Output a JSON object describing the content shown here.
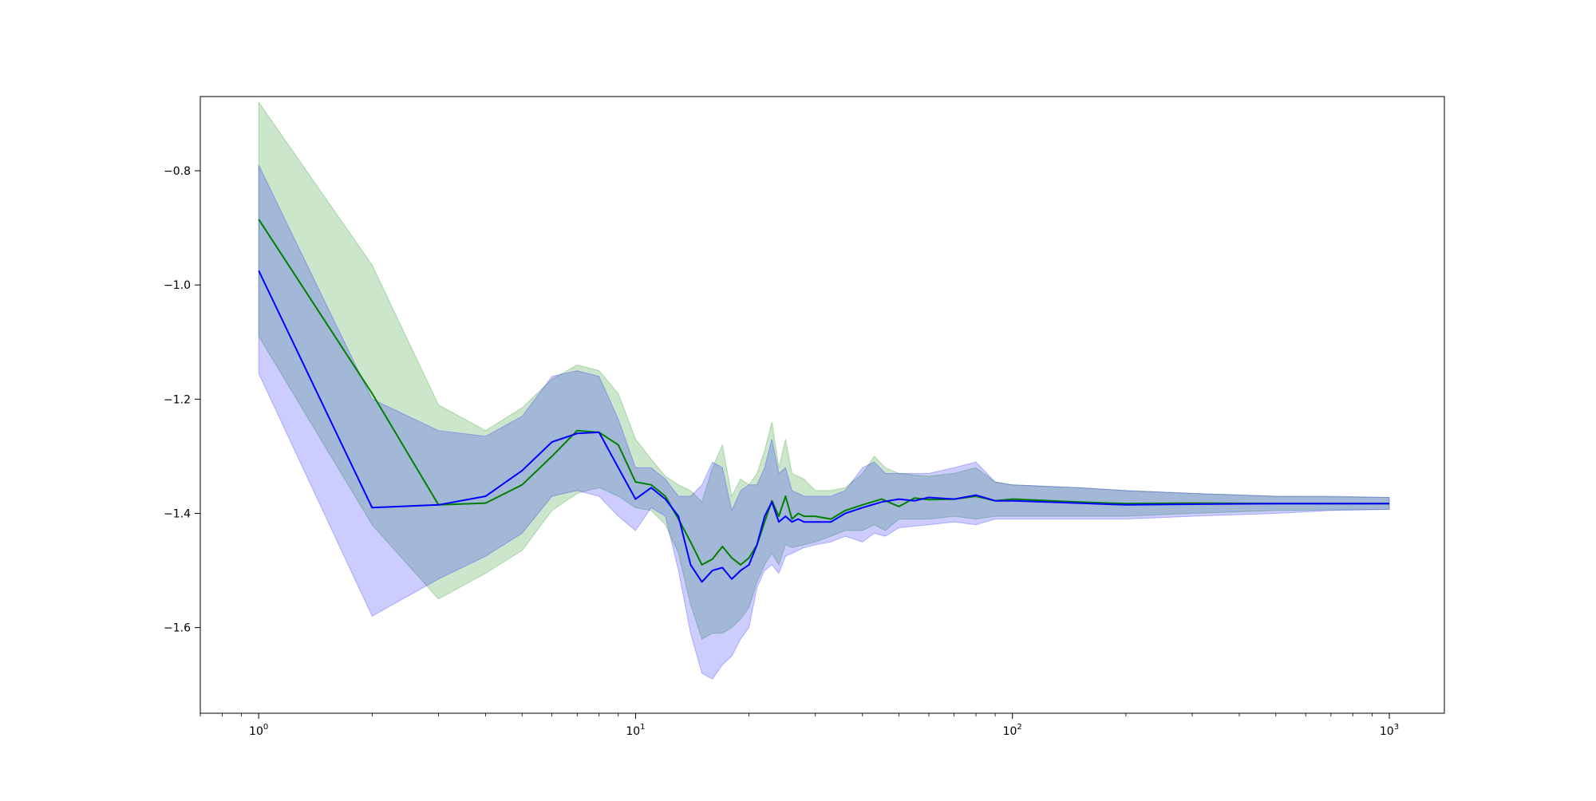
{
  "chart_data": {
    "type": "line",
    "title": "",
    "xlabel": "",
    "ylabel": "",
    "xscale": "log",
    "xlim": [
      0.7,
      1400
    ],
    "ylim": [
      -1.75,
      -0.67
    ],
    "x_ticks": [
      {
        "value": 1,
        "base": "10",
        "exp": "0"
      },
      {
        "value": 10,
        "base": "10",
        "exp": "1"
      },
      {
        "value": 100,
        "base": "10",
        "exp": "2"
      },
      {
        "value": 1000,
        "base": "10",
        "exp": "3"
      }
    ],
    "y_ticks": [
      {
        "value": -0.8,
        "label": "−0.8"
      },
      {
        "value": -1.0,
        "label": "−1.0"
      },
      {
        "value": -1.2,
        "label": "−1.2"
      },
      {
        "value": -1.4,
        "label": "−1.4"
      },
      {
        "value": -1.6,
        "label": "−1.6"
      }
    ],
    "grid": false,
    "legend": "none",
    "series": [
      {
        "color": "#008000",
        "band_color": "#008000",
        "band_opacity": 0.2,
        "mean": [
          [
            1,
            -0.885
          ],
          [
            2,
            -1.19
          ],
          [
            3,
            -1.385
          ],
          [
            4,
            -1.382
          ],
          [
            5,
            -1.35
          ],
          [
            6,
            -1.3
          ],
          [
            7,
            -1.255
          ],
          [
            8,
            -1.258
          ],
          [
            9,
            -1.28
          ],
          [
            10,
            -1.345
          ],
          [
            11,
            -1.35
          ],
          [
            12,
            -1.37
          ],
          [
            13,
            -1.41
          ],
          [
            14,
            -1.45
          ],
          [
            15,
            -1.49
          ],
          [
            16,
            -1.48
          ],
          [
            17,
            -1.458
          ],
          [
            18,
            -1.478
          ],
          [
            19,
            -1.49
          ],
          [
            20,
            -1.478
          ],
          [
            21,
            -1.455
          ],
          [
            22,
            -1.415
          ],
          [
            23,
            -1.378
          ],
          [
            24,
            -1.405
          ],
          [
            25,
            -1.37
          ],
          [
            26,
            -1.41
          ],
          [
            27,
            -1.4
          ],
          [
            28,
            -1.405
          ],
          [
            30,
            -1.405
          ],
          [
            33,
            -1.41
          ],
          [
            36,
            -1.395
          ],
          [
            40,
            -1.385
          ],
          [
            45,
            -1.375
          ],
          [
            50,
            -1.388
          ],
          [
            55,
            -1.373
          ],
          [
            60,
            -1.376
          ],
          [
            70,
            -1.375
          ],
          [
            80,
            -1.37
          ],
          [
            90,
            -1.378
          ],
          [
            100,
            -1.375
          ],
          [
            150,
            -1.38
          ],
          [
            200,
            -1.383
          ],
          [
            300,
            -1.382
          ],
          [
            500,
            -1.383
          ],
          [
            1000,
            -1.383
          ]
        ],
        "band": [
          [
            1,
            -0.68,
            -1.09
          ],
          [
            2,
            -0.965,
            -1.42
          ],
          [
            3,
            -1.21,
            -1.55
          ],
          [
            4,
            -1.255,
            -1.505
          ],
          [
            5,
            -1.215,
            -1.465
          ],
          [
            6,
            -1.165,
            -1.395
          ],
          [
            7,
            -1.14,
            -1.365
          ],
          [
            8,
            -1.15,
            -1.355
          ],
          [
            9,
            -1.19,
            -1.37
          ],
          [
            10,
            -1.27,
            -1.39
          ],
          [
            11,
            -1.305,
            -1.395
          ],
          [
            12,
            -1.335,
            -1.42
          ],
          [
            13,
            -1.35,
            -1.47
          ],
          [
            14,
            -1.36,
            -1.56
          ],
          [
            15,
            -1.38,
            -1.62
          ],
          [
            16,
            -1.32,
            -1.61
          ],
          [
            17,
            -1.28,
            -1.61
          ],
          [
            18,
            -1.37,
            -1.6
          ],
          [
            19,
            -1.34,
            -1.585
          ],
          [
            20,
            -1.35,
            -1.565
          ],
          [
            21,
            -1.33,
            -1.52
          ],
          [
            22,
            -1.29,
            -1.49
          ],
          [
            23,
            -1.24,
            -1.47
          ],
          [
            24,
            -1.32,
            -1.49
          ],
          [
            25,
            -1.27,
            -1.455
          ],
          [
            26,
            -1.33,
            -1.46
          ],
          [
            28,
            -1.34,
            -1.455
          ],
          [
            30,
            -1.36,
            -1.45
          ],
          [
            33,
            -1.36,
            -1.44
          ],
          [
            36,
            -1.355,
            -1.43
          ],
          [
            40,
            -1.33,
            -1.43
          ],
          [
            43,
            -1.3,
            -1.42
          ],
          [
            46,
            -1.32,
            -1.43
          ],
          [
            50,
            -1.33,
            -1.41
          ],
          [
            60,
            -1.335,
            -1.41
          ],
          [
            70,
            -1.33,
            -1.405
          ],
          [
            80,
            -1.32,
            -1.41
          ],
          [
            90,
            -1.345,
            -1.405
          ],
          [
            100,
            -1.35,
            -1.405
          ],
          [
            150,
            -1.355,
            -1.405
          ],
          [
            200,
            -1.36,
            -1.405
          ],
          [
            300,
            -1.365,
            -1.4
          ],
          [
            500,
            -1.37,
            -1.395
          ],
          [
            1000,
            -1.372,
            -1.393
          ]
        ]
      },
      {
        "color": "#0000ff",
        "band_color": "#0000ff",
        "band_opacity": 0.2,
        "mean": [
          [
            1,
            -0.975
          ],
          [
            2,
            -1.39
          ],
          [
            3,
            -1.385
          ],
          [
            4,
            -1.37
          ],
          [
            5,
            -1.325
          ],
          [
            6,
            -1.275
          ],
          [
            7,
            -1.26
          ],
          [
            8,
            -1.258
          ],
          [
            9,
            -1.32
          ],
          [
            10,
            -1.375
          ],
          [
            11,
            -1.355
          ],
          [
            12,
            -1.375
          ],
          [
            13,
            -1.405
          ],
          [
            14,
            -1.49
          ],
          [
            15,
            -1.52
          ],
          [
            16,
            -1.5
          ],
          [
            17,
            -1.495
          ],
          [
            18,
            -1.515
          ],
          [
            19,
            -1.5
          ],
          [
            20,
            -1.49
          ],
          [
            21,
            -1.455
          ],
          [
            22,
            -1.405
          ],
          [
            23,
            -1.38
          ],
          [
            24,
            -1.415
          ],
          [
            25,
            -1.405
          ],
          [
            26,
            -1.415
          ],
          [
            27,
            -1.41
          ],
          [
            28,
            -1.415
          ],
          [
            30,
            -1.415
          ],
          [
            33,
            -1.415
          ],
          [
            36,
            -1.4
          ],
          [
            40,
            -1.39
          ],
          [
            45,
            -1.38
          ],
          [
            50,
            -1.375
          ],
          [
            55,
            -1.378
          ],
          [
            60,
            -1.372
          ],
          [
            70,
            -1.375
          ],
          [
            80,
            -1.368
          ],
          [
            90,
            -1.378
          ],
          [
            100,
            -1.378
          ],
          [
            150,
            -1.382
          ],
          [
            200,
            -1.385
          ],
          [
            300,
            -1.384
          ],
          [
            500,
            -1.383
          ],
          [
            1000,
            -1.383
          ]
        ],
        "band": [
          [
            1,
            -0.79,
            -1.155
          ],
          [
            2,
            -1.2,
            -1.58
          ],
          [
            3,
            -1.255,
            -1.515
          ],
          [
            4,
            -1.265,
            -1.475
          ],
          [
            5,
            -1.23,
            -1.435
          ],
          [
            6,
            -1.16,
            -1.37
          ],
          [
            7,
            -1.15,
            -1.36
          ],
          [
            8,
            -1.16,
            -1.37
          ],
          [
            9,
            -1.235,
            -1.405
          ],
          [
            10,
            -1.32,
            -1.43
          ],
          [
            11,
            -1.32,
            -1.39
          ],
          [
            12,
            -1.34,
            -1.405
          ],
          [
            13,
            -1.37,
            -1.5
          ],
          [
            14,
            -1.37,
            -1.61
          ],
          [
            15,
            -1.35,
            -1.68
          ],
          [
            16,
            -1.31,
            -1.69
          ],
          [
            17,
            -1.32,
            -1.665
          ],
          [
            18,
            -1.395,
            -1.65
          ],
          [
            19,
            -1.36,
            -1.62
          ],
          [
            20,
            -1.35,
            -1.6
          ],
          [
            21,
            -1.35,
            -1.53
          ],
          [
            22,
            -1.32,
            -1.5
          ],
          [
            23,
            -1.27,
            -1.49
          ],
          [
            24,
            -1.33,
            -1.505
          ],
          [
            25,
            -1.32,
            -1.475
          ],
          [
            26,
            -1.36,
            -1.47
          ],
          [
            28,
            -1.37,
            -1.46
          ],
          [
            30,
            -1.37,
            -1.455
          ],
          [
            33,
            -1.37,
            -1.45
          ],
          [
            36,
            -1.36,
            -1.44
          ],
          [
            40,
            -1.32,
            -1.45
          ],
          [
            43,
            -1.31,
            -1.435
          ],
          [
            46,
            -1.33,
            -1.44
          ],
          [
            50,
            -1.33,
            -1.425
          ],
          [
            60,
            -1.33,
            -1.42
          ],
          [
            70,
            -1.32,
            -1.415
          ],
          [
            80,
            -1.31,
            -1.42
          ],
          [
            90,
            -1.345,
            -1.41
          ],
          [
            100,
            -1.35,
            -1.41
          ],
          [
            150,
            -1.355,
            -1.41
          ],
          [
            200,
            -1.36,
            -1.41
          ],
          [
            300,
            -1.365,
            -1.405
          ],
          [
            500,
            -1.37,
            -1.4
          ],
          [
            700,
            -1.37,
            -1.395
          ],
          [
            1000,
            -1.372,
            -1.393
          ]
        ]
      }
    ]
  }
}
